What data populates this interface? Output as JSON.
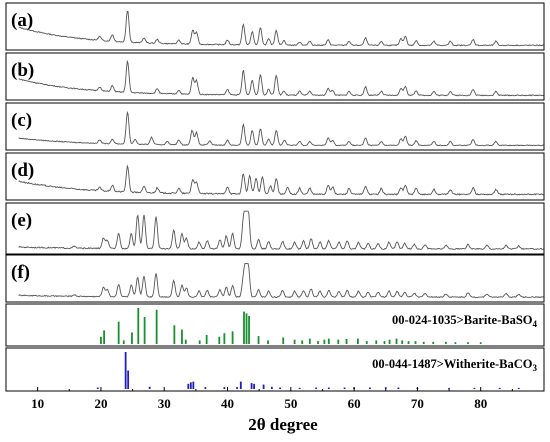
{
  "chart_data": {
    "type": "line",
    "xlabel": "2θ degree",
    "xlim": [
      5,
      90
    ],
    "xticks": [
      10,
      20,
      30,
      40,
      50,
      60,
      70,
      80
    ],
    "panels": [
      {
        "label": "(a)",
        "peaks": [
          [
            19.8,
            0.12
          ],
          [
            21.8,
            0.2
          ],
          [
            24.2,
            1.0
          ],
          [
            26.8,
            0.15
          ],
          [
            28.9,
            0.12
          ],
          [
            32.3,
            0.12
          ],
          [
            34.5,
            0.42
          ],
          [
            35.1,
            0.36
          ],
          [
            40.0,
            0.14
          ],
          [
            42.5,
            0.62
          ],
          [
            43.9,
            0.4
          ],
          [
            45.2,
            0.52
          ],
          [
            46.5,
            0.18
          ],
          [
            47.7,
            0.45
          ],
          [
            48.9,
            0.14
          ],
          [
            51.4,
            0.1
          ],
          [
            53.0,
            0.12
          ],
          [
            55.9,
            0.16
          ],
          [
            59.2,
            0.12
          ],
          [
            61.8,
            0.22
          ],
          [
            64.3,
            0.12
          ],
          [
            67.4,
            0.2
          ],
          [
            68.1,
            0.28
          ],
          [
            69.8,
            0.14
          ],
          [
            72.6,
            0.12
          ],
          [
            75.2,
            0.12
          ],
          [
            78.8,
            0.18
          ],
          [
            82.4,
            0.12
          ]
        ],
        "baseline": [
          0.55,
          0.02
        ],
        "noise": 0.03
      },
      {
        "label": "(b)",
        "peaks": [
          [
            19.8,
            0.12
          ],
          [
            21.8,
            0.18
          ],
          [
            24.2,
            0.95
          ],
          [
            28.9,
            0.15
          ],
          [
            32.3,
            0.12
          ],
          [
            34.5,
            0.5
          ],
          [
            35.1,
            0.42
          ],
          [
            40.0,
            0.16
          ],
          [
            42.5,
            0.75
          ],
          [
            43.9,
            0.45
          ],
          [
            45.2,
            0.62
          ],
          [
            46.5,
            0.18
          ],
          [
            47.7,
            0.6
          ],
          [
            48.9,
            0.12
          ],
          [
            51.4,
            0.12
          ],
          [
            53.0,
            0.12
          ],
          [
            55.9,
            0.22
          ],
          [
            56.6,
            0.15
          ],
          [
            59.2,
            0.12
          ],
          [
            61.8,
            0.26
          ],
          [
            64.3,
            0.12
          ],
          [
            67.4,
            0.22
          ],
          [
            68.1,
            0.28
          ],
          [
            69.8,
            0.14
          ],
          [
            72.6,
            0.12
          ],
          [
            75.2,
            0.12
          ],
          [
            78.8,
            0.18
          ],
          [
            82.4,
            0.12
          ]
        ],
        "baseline": [
          0.5,
          0.02
        ],
        "noise": 0.03
      },
      {
        "label": "(c)",
        "peaks": [
          [
            19.8,
            0.1
          ],
          [
            21.8,
            0.14
          ],
          [
            24.2,
            0.98
          ],
          [
            25.4,
            0.15
          ],
          [
            28.0,
            0.22
          ],
          [
            30.5,
            0.1
          ],
          [
            32.3,
            0.15
          ],
          [
            34.4,
            0.45
          ],
          [
            35.1,
            0.38
          ],
          [
            37.2,
            0.12
          ],
          [
            40.0,
            0.15
          ],
          [
            42.5,
            0.62
          ],
          [
            43.9,
            0.45
          ],
          [
            45.2,
            0.5
          ],
          [
            46.5,
            0.2
          ],
          [
            47.7,
            0.45
          ],
          [
            49.0,
            0.15
          ],
          [
            51.4,
            0.12
          ],
          [
            53.0,
            0.12
          ],
          [
            55.9,
            0.22
          ],
          [
            56.6,
            0.15
          ],
          [
            59.2,
            0.12
          ],
          [
            61.8,
            0.22
          ],
          [
            64.3,
            0.12
          ],
          [
            67.4,
            0.2
          ],
          [
            68.1,
            0.28
          ],
          [
            69.8,
            0.14
          ],
          [
            72.6,
            0.12
          ],
          [
            75.2,
            0.12
          ],
          [
            78.8,
            0.18
          ],
          [
            82.4,
            0.12
          ]
        ],
        "baseline": [
          0.22,
          0.02
        ],
        "noise": 0.025
      },
      {
        "label": "(d)",
        "peaks": [
          [
            19.8,
            0.1
          ],
          [
            21.8,
            0.18
          ],
          [
            24.2,
            0.78
          ],
          [
            26.8,
            0.18
          ],
          [
            28.9,
            0.15
          ],
          [
            32.3,
            0.15
          ],
          [
            34.5,
            0.42
          ],
          [
            35.1,
            0.36
          ],
          [
            40.0,
            0.22
          ],
          [
            42.5,
            0.62
          ],
          [
            43.5,
            0.55
          ],
          [
            44.5,
            0.48
          ],
          [
            45.5,
            0.52
          ],
          [
            46.8,
            0.25
          ],
          [
            47.7,
            0.48
          ],
          [
            49.5,
            0.2
          ],
          [
            51.4,
            0.18
          ],
          [
            53.0,
            0.18
          ],
          [
            55.9,
            0.28
          ],
          [
            56.6,
            0.22
          ],
          [
            59.2,
            0.18
          ],
          [
            61.8,
            0.25
          ],
          [
            64.3,
            0.18
          ],
          [
            67.4,
            0.2
          ],
          [
            68.1,
            0.28
          ],
          [
            69.8,
            0.18
          ],
          [
            72.6,
            0.15
          ],
          [
            75.2,
            0.15
          ],
          [
            78.8,
            0.2
          ],
          [
            82.4,
            0.15
          ]
        ],
        "baseline": [
          0.4,
          0.05
        ],
        "noise": 0.04
      },
      {
        "label": "(e)",
        "peaks": [
          [
            15.8,
            0.05
          ],
          [
            20.4,
            0.28
          ],
          [
            21.0,
            0.22
          ],
          [
            22.8,
            0.42
          ],
          [
            24.8,
            0.4
          ],
          [
            25.8,
            0.92
          ],
          [
            26.8,
            0.92
          ],
          [
            28.7,
            0.88
          ],
          [
            31.5,
            0.5
          ],
          [
            32.8,
            0.4
          ],
          [
            33.5,
            0.28
          ],
          [
            35.5,
            0.18
          ],
          [
            36.8,
            0.22
          ],
          [
            38.8,
            0.25
          ],
          [
            39.8,
            0.35
          ],
          [
            40.8,
            0.42
          ],
          [
            42.5,
            0.72
          ],
          [
            42.9,
            0.95
          ],
          [
            43.3,
            0.9
          ],
          [
            44.9,
            0.25
          ],
          [
            46.5,
            0.2
          ],
          [
            48.7,
            0.2
          ],
          [
            50.6,
            0.18
          ],
          [
            52.0,
            0.22
          ],
          [
            53.2,
            0.28
          ],
          [
            54.6,
            0.18
          ],
          [
            56.0,
            0.22
          ],
          [
            57.6,
            0.18
          ],
          [
            58.9,
            0.22
          ],
          [
            60.7,
            0.18
          ],
          [
            62.2,
            0.15
          ],
          [
            63.8,
            0.15
          ],
          [
            65.5,
            0.18
          ],
          [
            66.8,
            0.2
          ],
          [
            68.0,
            0.15
          ],
          [
            69.5,
            0.12
          ],
          [
            71.2,
            0.12
          ],
          [
            74.5,
            0.1
          ],
          [
            78.0,
            0.12
          ],
          [
            81.0,
            0.1
          ],
          [
            84.0,
            0.1
          ],
          [
            86.0,
            0.08
          ]
        ],
        "baseline": [
          0.05,
          0.03
        ],
        "noise": 0.03
      },
      {
        "label": "(f)",
        "peaks": [
          [
            15.8,
            0.05
          ],
          [
            20.4,
            0.28
          ],
          [
            21.0,
            0.22
          ],
          [
            22.8,
            0.38
          ],
          [
            24.8,
            0.35
          ],
          [
            25.8,
            0.58
          ],
          [
            26.8,
            0.62
          ],
          [
            28.7,
            0.72
          ],
          [
            31.5,
            0.5
          ],
          [
            32.8,
            0.35
          ],
          [
            33.5,
            0.28
          ],
          [
            35.5,
            0.18
          ],
          [
            36.8,
            0.2
          ],
          [
            38.8,
            0.22
          ],
          [
            39.8,
            0.3
          ],
          [
            40.8,
            0.35
          ],
          [
            42.5,
            0.55
          ],
          [
            42.9,
            0.88
          ],
          [
            43.3,
            0.82
          ],
          [
            44.9,
            0.22
          ],
          [
            46.5,
            0.18
          ],
          [
            48.7,
            0.2
          ],
          [
            50.6,
            0.18
          ],
          [
            52.0,
            0.2
          ],
          [
            53.2,
            0.25
          ],
          [
            54.6,
            0.18
          ],
          [
            56.0,
            0.2
          ],
          [
            57.6,
            0.18
          ],
          [
            58.9,
            0.2
          ],
          [
            60.7,
            0.18
          ],
          [
            62.2,
            0.15
          ],
          [
            63.8,
            0.15
          ],
          [
            65.5,
            0.18
          ],
          [
            66.8,
            0.18
          ],
          [
            68.0,
            0.15
          ],
          [
            69.5,
            0.12
          ],
          [
            71.2,
            0.12
          ],
          [
            74.5,
            0.1
          ],
          [
            78.0,
            0.12
          ],
          [
            81.0,
            0.1
          ],
          [
            84.0,
            0.1
          ],
          [
            86.0,
            0.08
          ]
        ],
        "baseline": [
          0.05,
          0.03
        ],
        "noise": 0.03
      }
    ],
    "references": [
      {
        "label": "00-024-1035>Barite-BaSO",
        "label_sub": "4",
        "color": "#1a8f2e",
        "sticks": [
          [
            20.0,
            0.2
          ],
          [
            20.5,
            0.38
          ],
          [
            22.8,
            0.62
          ],
          [
            23.6,
            0.1
          ],
          [
            24.9,
            0.32
          ],
          [
            25.9,
            1.0
          ],
          [
            26.9,
            0.75
          ],
          [
            28.8,
            0.95
          ],
          [
            31.6,
            0.52
          ],
          [
            32.8,
            0.4
          ],
          [
            33.4,
            0.12
          ],
          [
            35.6,
            0.1
          ],
          [
            36.7,
            0.25
          ],
          [
            38.7,
            0.2
          ],
          [
            39.5,
            0.3
          ],
          [
            40.8,
            0.35
          ],
          [
            42.6,
            0.9
          ],
          [
            43.0,
            0.85
          ],
          [
            43.4,
            0.78
          ],
          [
            44.9,
            0.22
          ],
          [
            46.4,
            0.1
          ],
          [
            48.8,
            0.18
          ],
          [
            50.6,
            0.12
          ],
          [
            51.8,
            0.1
          ],
          [
            53.0,
            0.15
          ],
          [
            54.3,
            0.08
          ],
          [
            55.3,
            0.12
          ],
          [
            56.0,
            0.15
          ],
          [
            57.5,
            0.12
          ],
          [
            58.8,
            0.14
          ],
          [
            60.6,
            0.15
          ],
          [
            62.0,
            0.08
          ],
          [
            63.5,
            0.1
          ],
          [
            64.8,
            0.08
          ],
          [
            65.6,
            0.12
          ],
          [
            66.7,
            0.15
          ],
          [
            67.6,
            0.1
          ],
          [
            68.6,
            0.08
          ],
          [
            69.7,
            0.08
          ],
          [
            71.0,
            0.06
          ],
          [
            72.5,
            0.06
          ],
          [
            74.5,
            0.06
          ],
          [
            76.0,
            0.05
          ],
          [
            78.0,
            0.05
          ],
          [
            80.0,
            0.05
          ]
        ]
      },
      {
        "label": "00-044-1487>Witherite-BaCO",
        "label_sub": "3",
        "color": "#1f1fbf",
        "sticks": [
          [
            19.5,
            0.04
          ],
          [
            23.9,
            1.0
          ],
          [
            24.3,
            0.5
          ],
          [
            27.7,
            0.06
          ],
          [
            33.8,
            0.14
          ],
          [
            34.2,
            0.18
          ],
          [
            34.6,
            0.2
          ],
          [
            36.5,
            0.05
          ],
          [
            39.5,
            0.05
          ],
          [
            41.5,
            0.05
          ],
          [
            42.1,
            0.2
          ],
          [
            43.8,
            0.16
          ],
          [
            44.2,
            0.14
          ],
          [
            45.7,
            0.12
          ],
          [
            47.0,
            0.06
          ],
          [
            48.3,
            0.04
          ],
          [
            51.4,
            0.03
          ],
          [
            54.0,
            0.04
          ],
          [
            56.0,
            0.04
          ],
          [
            58.5,
            0.04
          ],
          [
            60.0,
            0.04
          ],
          [
            62.5,
            0.04
          ],
          [
            65.0,
            0.05
          ],
          [
            67.0,
            0.04
          ],
          [
            70.0,
            0.03
          ],
          [
            75.0,
            0.03
          ],
          [
            79.0,
            0.03
          ],
          [
            83.0,
            0.03
          ],
          [
            86.0,
            0.03
          ]
        ]
      }
    ]
  }
}
